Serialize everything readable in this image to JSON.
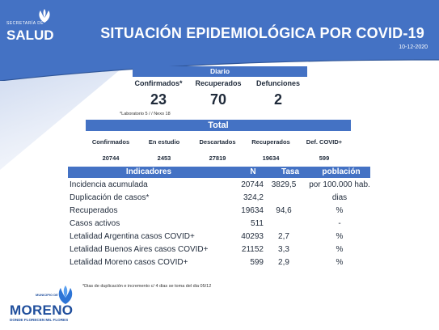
{
  "header": {
    "logo_small": "SECRETARÍA DE",
    "logo_big": "SALUD",
    "title": "SITUACIÓN EPIDEMIOLÓGICA POR COVID-19",
    "date": "10-12-2020"
  },
  "diario": {
    "label": "Diario",
    "columns": [
      {
        "label": "Confirmados*",
        "value": "23"
      },
      {
        "label": "Recuperados",
        "value": "70"
      },
      {
        "label": "Defunciones",
        "value": "2"
      }
    ],
    "note": "*Laboratorio 5 / / Nexo 18"
  },
  "total": {
    "label": "Total",
    "columns": [
      {
        "label": "Confirmados",
        "value": "20744"
      },
      {
        "label": "En estudio",
        "value": "2453"
      },
      {
        "label": "Descartados",
        "value": "27819"
      },
      {
        "label": "Recuperados",
        "value": "19634"
      },
      {
        "label": "Def. COVID+",
        "value": "599"
      }
    ]
  },
  "indicadores": {
    "headers": [
      "Indicadores",
      "N",
      "Tasa",
      "población"
    ],
    "rows": [
      {
        "name": "Incidencia acumulada",
        "n": "20744",
        "tasa": "3829,5",
        "pob": "por 100.000 hab."
      },
      {
        "name": "Duplicación de casos*",
        "n": "324,2",
        "tasa": "",
        "pob": "dias"
      },
      {
        "name": "Recuperados",
        "n": "19634",
        "tasa": "94,6",
        "pob": "%"
      },
      {
        "name": "Casos activos",
        "n": "511",
        "tasa": "",
        "pob": "-"
      },
      {
        "name": "Letalidad Argentina casos COVID+",
        "n": "40293",
        "tasa": "2,7",
        "pob": "%"
      },
      {
        "name": "Letalidad Buenos Aires casos COVID+",
        "n": "21152",
        "tasa": "3,3",
        "pob": "%"
      },
      {
        "name": "Letalidad Moreno casos COVID+",
        "n": "599",
        "tasa": "2,9",
        "pob": "%"
      }
    ]
  },
  "footer": {
    "note": "*Dias de duplicación e incremento c/ 4 dias se toma del dia 05/12",
    "municipio": "MUNICIPIO DE",
    "name": "MORENO",
    "tagline": "DONDE FLORECEN MIL FLORES"
  },
  "colors": {
    "accent": "#4472c4",
    "text": "#1f2a3a"
  }
}
